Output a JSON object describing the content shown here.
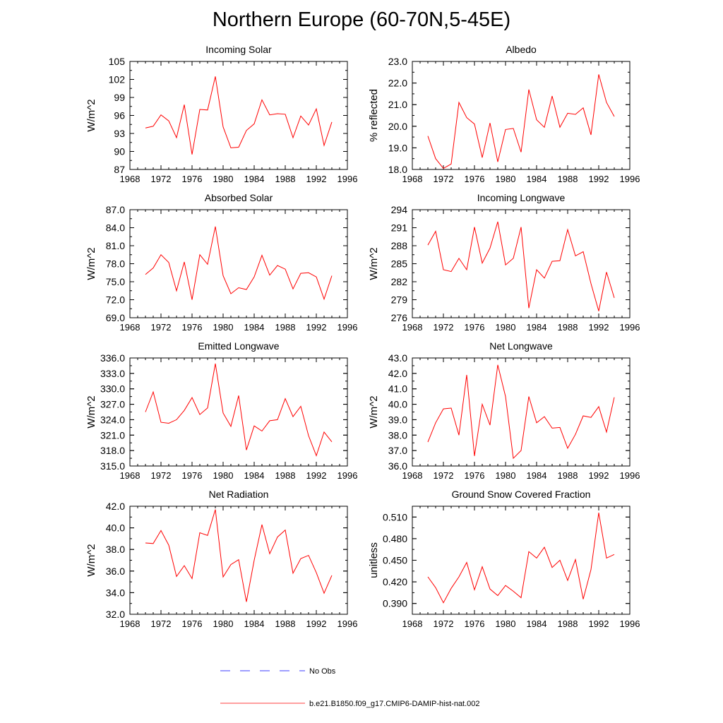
{
  "figure": {
    "title": "Northern Europe (60-70N,5-45E)"
  },
  "legend": {
    "obs_label": "No Obs",
    "model_label": "b.e21.B1850.f09_g17.CMIP6-DAMIP-hist-nat.002",
    "model_color": "#ff0000",
    "obs_color": "#0000ff"
  },
  "chart_data": [
    {
      "type": "line",
      "title": "Incoming Solar",
      "ylabel": "W/m^2",
      "xlim": [
        1968,
        1996
      ],
      "ylim": [
        87,
        105
      ],
      "xticks": [
        "1968",
        "1972",
        "1976",
        "1980",
        "1984",
        "1988",
        "1992",
        "1996"
      ],
      "yticks": [
        "87",
        "90",
        "93",
        "96",
        "99",
        "102",
        "105"
      ],
      "series": [
        {
          "name": "b.e21.B1850.f09_g17.CMIP6-DAMIP-hist-nat.002",
          "x": [
            1970,
            1971,
            1972,
            1973,
            1974,
            1975,
            1976,
            1977,
            1978,
            1979,
            1980,
            1981,
            1982,
            1983,
            1984,
            1985,
            1986,
            1987,
            1988,
            1989,
            1990,
            1991,
            1992,
            1993,
            1994
          ],
          "values": [
            93.9,
            94.2,
            96.1,
            95.1,
            92.3,
            97.8,
            89.5,
            97.0,
            96.9,
            102.5,
            94.1,
            90.6,
            90.7,
            93.5,
            94.6,
            98.6,
            96.1,
            96.3,
            96.2,
            92.3,
            95.9,
            94.4,
            97.1,
            91.0,
            94.9
          ]
        }
      ]
    },
    {
      "type": "line",
      "title": "Albedo",
      "ylabel": "% reflected",
      "xlim": [
        1968,
        1996
      ],
      "ylim": [
        18.0,
        23.0
      ],
      "xticks": [
        "1968",
        "1972",
        "1976",
        "1980",
        "1984",
        "1988",
        "1992",
        "1996"
      ],
      "yticks": [
        "18.0",
        "19.0",
        "20.0",
        "21.0",
        "22.0",
        "23.0"
      ],
      "series": [
        {
          "name": "b.e21.B1850.f09_g17.CMIP6-DAMIP-hist-nat.002",
          "x": [
            1970,
            1971,
            1972,
            1973,
            1974,
            1975,
            1976,
            1977,
            1978,
            1979,
            1980,
            1981,
            1982,
            1983,
            1984,
            1985,
            1986,
            1987,
            1988,
            1989,
            1990,
            1991,
            1992,
            1993,
            1994
          ],
          "values": [
            19.55,
            18.5,
            18.05,
            18.25,
            21.1,
            20.4,
            20.1,
            18.55,
            20.15,
            18.35,
            19.85,
            19.9,
            18.8,
            21.7,
            20.3,
            19.95,
            21.4,
            19.95,
            20.6,
            20.55,
            20.85,
            19.6,
            22.4,
            21.1,
            20.45
          ]
        }
      ]
    },
    {
      "type": "line",
      "title": "Absorbed Solar",
      "ylabel": "W/m^2",
      "xlim": [
        1968,
        1996
      ],
      "ylim": [
        69.0,
        87.0
      ],
      "xticks": [
        "1968",
        "1972",
        "1976",
        "1980",
        "1984",
        "1988",
        "1992",
        "1996"
      ],
      "yticks": [
        "69.0",
        "72.0",
        "75.0",
        "78.0",
        "81.0",
        "84.0",
        "87.0"
      ],
      "series": [
        {
          "name": "b.e21.B1850.f09_g17.CMIP6-DAMIP-hist-nat.002",
          "x": [
            1970,
            1971,
            1972,
            1973,
            1974,
            1975,
            1976,
            1977,
            1978,
            1979,
            1980,
            1981,
            1982,
            1983,
            1984,
            1985,
            1986,
            1987,
            1988,
            1989,
            1990,
            1991,
            1992,
            1993,
            1994
          ],
          "values": [
            76.2,
            77.3,
            79.5,
            78.2,
            73.5,
            78.3,
            72.0,
            79.5,
            77.9,
            84.2,
            76.0,
            73.0,
            74.0,
            73.7,
            75.8,
            79.4,
            76.1,
            77.7,
            77.1,
            73.8,
            76.4,
            76.5,
            75.8,
            72.1,
            76.0
          ]
        }
      ]
    },
    {
      "type": "line",
      "title": "Incoming Longwave",
      "ylabel": "W/m^2",
      "xlim": [
        1968,
        1996
      ],
      "ylim": [
        276,
        294
      ],
      "xticks": [
        "1968",
        "1972",
        "1976",
        "1980",
        "1984",
        "1988",
        "1992",
        "1996"
      ],
      "yticks": [
        "276",
        "279",
        "282",
        "285",
        "288",
        "291",
        "294"
      ],
      "series": [
        {
          "name": "b.e21.B1850.f09_g17.CMIP6-DAMIP-hist-nat.002",
          "x": [
            1970,
            1971,
            1972,
            1973,
            1974,
            1975,
            1976,
            1977,
            1978,
            1979,
            1980,
            1981,
            1982,
            1983,
            1984,
            1985,
            1986,
            1987,
            1988,
            1989,
            1990,
            1991,
            1992,
            1993,
            1994
          ],
          "values": [
            288.1,
            290.4,
            284.0,
            283.7,
            285.9,
            284.0,
            291.1,
            285.1,
            287.6,
            292.0,
            284.8,
            285.9,
            291.1,
            277.6,
            284.0,
            282.6,
            285.4,
            285.5,
            290.7,
            286.3,
            287.0,
            281.7,
            277.1,
            283.6,
            279.3
          ]
        }
      ]
    },
    {
      "type": "line",
      "title": "Emitted Longwave",
      "ylabel": "W/m^2",
      "xlim": [
        1968,
        1996
      ],
      "ylim": [
        315.0,
        336.0
      ],
      "xticks": [
        "1968",
        "1972",
        "1976",
        "1980",
        "1984",
        "1988",
        "1992",
        "1996"
      ],
      "yticks": [
        "315.0",
        "318.0",
        "321.0",
        "324.0",
        "327.0",
        "330.0",
        "333.0",
        "336.0"
      ],
      "series": [
        {
          "name": "b.e21.B1850.f09_g17.CMIP6-DAMIP-hist-nat.002",
          "x": [
            1970,
            1971,
            1972,
            1973,
            1974,
            1975,
            1976,
            1977,
            1978,
            1979,
            1980,
            1981,
            1982,
            1983,
            1984,
            1985,
            1986,
            1987,
            1988,
            1989,
            1990,
            1991,
            1992,
            1993,
            1994
          ],
          "values": [
            325.5,
            329.4,
            323.5,
            323.3,
            324.0,
            325.8,
            328.3,
            325.0,
            326.3,
            334.9,
            325.3,
            322.7,
            328.7,
            318.1,
            322.8,
            321.8,
            323.8,
            324.0,
            328.1,
            324.6,
            326.6,
            320.9,
            317.0,
            321.6,
            319.7
          ]
        }
      ]
    },
    {
      "type": "line",
      "title": "Net Longwave",
      "ylabel": "W/m^2",
      "xlim": [
        1968,
        1996
      ],
      "ylim": [
        36.0,
        43.0
      ],
      "xticks": [
        "1968",
        "1972",
        "1976",
        "1980",
        "1984",
        "1988",
        "1992",
        "1996"
      ],
      "yticks": [
        "36.0",
        "37.0",
        "38.0",
        "39.0",
        "40.0",
        "41.0",
        "42.0",
        "43.0"
      ],
      "series": [
        {
          "name": "b.e21.B1850.f09_g17.CMIP6-DAMIP-hist-nat.002",
          "x": [
            1970,
            1971,
            1972,
            1973,
            1974,
            1975,
            1976,
            1977,
            1978,
            1979,
            1980,
            1981,
            1982,
            1983,
            1984,
            1985,
            1986,
            1987,
            1988,
            1989,
            1990,
            1991,
            1992,
            1993,
            1994
          ],
          "values": [
            37.55,
            38.8,
            39.7,
            39.75,
            38.0,
            41.9,
            36.65,
            40.0,
            38.65,
            42.55,
            40.5,
            36.5,
            37.0,
            40.5,
            38.8,
            39.2,
            38.45,
            38.5,
            37.15,
            38.05,
            39.25,
            39.15,
            39.85,
            38.2,
            40.45
          ]
        }
      ]
    },
    {
      "type": "line",
      "title": "Net Radiation",
      "ylabel": "W/m^2",
      "xlim": [
        1968,
        1996
      ],
      "ylim": [
        32.0,
        42.0
      ],
      "xticks": [
        "1968",
        "1972",
        "1976",
        "1980",
        "1984",
        "1988",
        "1992",
        "1996"
      ],
      "yticks": [
        "32.0",
        "34.0",
        "36.0",
        "38.0",
        "40.0",
        "42.0"
      ],
      "series": [
        {
          "name": "b.e21.B1850.f09_g17.CMIP6-DAMIP-hist-nat.002",
          "x": [
            1970,
            1971,
            1972,
            1973,
            1974,
            1975,
            1976,
            1977,
            1978,
            1979,
            1980,
            1981,
            1982,
            1983,
            1984,
            1985,
            1986,
            1987,
            1988,
            1989,
            1990,
            1991,
            1992,
            1993,
            1994
          ],
          "values": [
            38.6,
            38.55,
            39.75,
            38.4,
            35.5,
            36.5,
            35.3,
            39.55,
            39.3,
            41.7,
            35.45,
            36.6,
            37.05,
            33.15,
            37.0,
            40.3,
            37.6,
            39.15,
            39.8,
            35.8,
            37.15,
            37.45,
            35.85,
            33.95,
            35.6
          ]
        }
      ]
    },
    {
      "type": "line",
      "title": "Ground Snow Covered Fraction",
      "ylabel": "unitless",
      "xlim": [
        1968,
        1996
      ],
      "ylim": [
        0.375,
        0.525
      ],
      "xticks": [
        "1968",
        "1972",
        "1976",
        "1980",
        "1984",
        "1988",
        "1992",
        "1996"
      ],
      "yticks": [
        "0.390",
        "0.420",
        "0.450",
        "0.480",
        "0.510"
      ],
      "series": [
        {
          "name": "b.e21.B1850.f09_g17.CMIP6-DAMIP-hist-nat.002",
          "x": [
            1970,
            1971,
            1972,
            1973,
            1974,
            1975,
            1976,
            1977,
            1978,
            1979,
            1980,
            1981,
            1982,
            1983,
            1984,
            1985,
            1986,
            1987,
            1988,
            1989,
            1990,
            1991,
            1992,
            1993,
            1994
          ],
          "values": [
            0.427,
            0.412,
            0.391,
            0.411,
            0.427,
            0.447,
            0.409,
            0.441,
            0.41,
            0.401,
            0.415,
            0.407,
            0.398,
            0.462,
            0.453,
            0.468,
            0.44,
            0.45,
            0.422,
            0.451,
            0.396,
            0.437,
            0.516,
            0.453,
            0.458
          ]
        }
      ]
    }
  ]
}
